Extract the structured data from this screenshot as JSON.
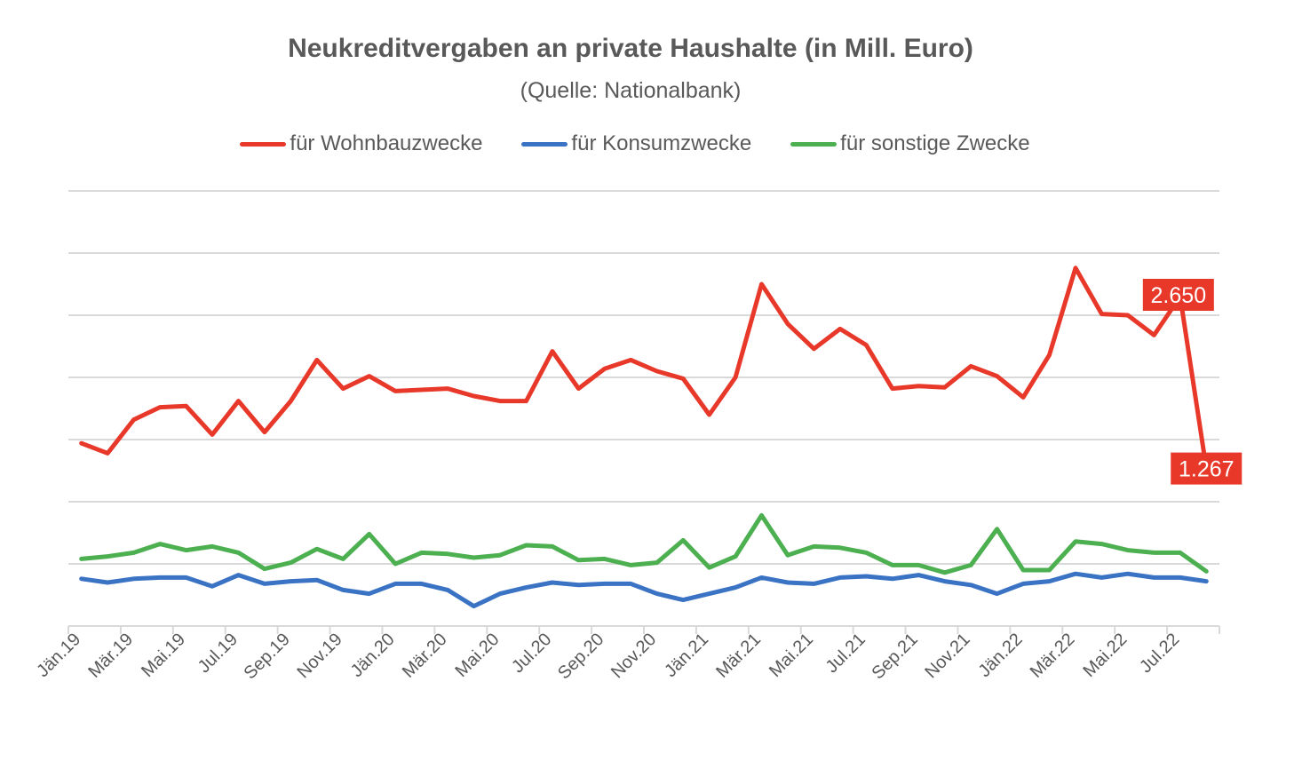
{
  "chart_data": {
    "type": "line",
    "title": "Neukreditvergaben an private Haushalte (in Mill. Euro)",
    "subtitle": "(Quelle: Nationalbank)",
    "xlabel": "",
    "ylabel": "",
    "ylim": [
      0,
      3500
    ],
    "y_grid_step": 500,
    "y_tick_labels_shown": false,
    "grid": true,
    "legend": "top",
    "categories": [
      "Jän.19",
      "Feb.19",
      "Mär.19",
      "Apr.19",
      "Mai.19",
      "Jun.19",
      "Jul.19",
      "Aug.19",
      "Sep.19",
      "Okt.19",
      "Nov.19",
      "Dez.19",
      "Jän.20",
      "Feb.20",
      "Mär.20",
      "Apr.20",
      "Mai.20",
      "Jun.20",
      "Jul.20",
      "Aug.20",
      "Sep.20",
      "Okt.20",
      "Nov.20",
      "Dez.20",
      "Jän.21",
      "Feb.21",
      "Mär.21",
      "Apr.21",
      "Mai.21",
      "Jun.21",
      "Jul.21",
      "Aug.21",
      "Sep.21",
      "Okt.21",
      "Nov.21",
      "Dez.21",
      "Jän.22",
      "Feb.22",
      "Mär.22",
      "Apr.22",
      "Mai.22",
      "Jun.22",
      "Jul.22",
      "Aug.22"
    ],
    "tick_labels": [
      "Jän.19",
      "Mär.19",
      "Mai.19",
      "Jul.19",
      "Sep.19",
      "Nov.19",
      "Jän.20",
      "Mär.20",
      "Mai.20",
      "Jul.20",
      "Sep.20",
      "Nov.20",
      "Jän.21",
      "Mär.21",
      "Mai.21",
      "Jul.21",
      "Sep.21",
      "Nov.21",
      "Jän.22",
      "Mär.22",
      "Mai.22",
      "Jul.22"
    ],
    "series": [
      {
        "name": "für Wohnbauzwecke",
        "color": "#e8382a",
        "values": [
          1470,
          1390,
          1660,
          1760,
          1770,
          1540,
          1810,
          1560,
          1810,
          2140,
          1910,
          2010,
          1890,
          1900,
          1910,
          1850,
          1810,
          1810,
          2210,
          1910,
          2070,
          2140,
          2050,
          1990,
          1700,
          2000,
          2750,
          2430,
          2230,
          2390,
          2260,
          1910,
          1930,
          1920,
          2090,
          2010,
          1840,
          2180,
          2880,
          2510,
          2500,
          2340,
          2650,
          1267
        ]
      },
      {
        "name": "für Konsumzwecke",
        "color": "#3a72c4",
        "values": [
          380,
          350,
          380,
          390,
          390,
          320,
          410,
          340,
          360,
          370,
          290,
          260,
          340,
          340,
          290,
          160,
          260,
          310,
          350,
          330,
          340,
          340,
          260,
          210,
          260,
          310,
          390,
          350,
          340,
          390,
          400,
          380,
          410,
          360,
          330,
          260,
          340,
          360,
          420,
          390,
          420,
          390,
          390,
          360
        ]
      },
      {
        "name": "für sonstige Zwecke",
        "color": "#4caf50",
        "values": [
          540,
          560,
          590,
          660,
          610,
          640,
          590,
          460,
          510,
          620,
          540,
          740,
          500,
          590,
          580,
          550,
          570,
          650,
          640,
          530,
          540,
          490,
          510,
          690,
          470,
          560,
          890,
          570,
          640,
          630,
          590,
          490,
          490,
          430,
          490,
          780,
          450,
          450,
          680,
          660,
          610,
          590,
          590,
          440
        ]
      }
    ],
    "annotations": [
      {
        "series": "für Wohnbauzwecke",
        "category": "Jul.22",
        "label": "2.650"
      },
      {
        "series": "für Wohnbauzwecke",
        "category": "Aug.22",
        "label": "1.267"
      }
    ]
  }
}
